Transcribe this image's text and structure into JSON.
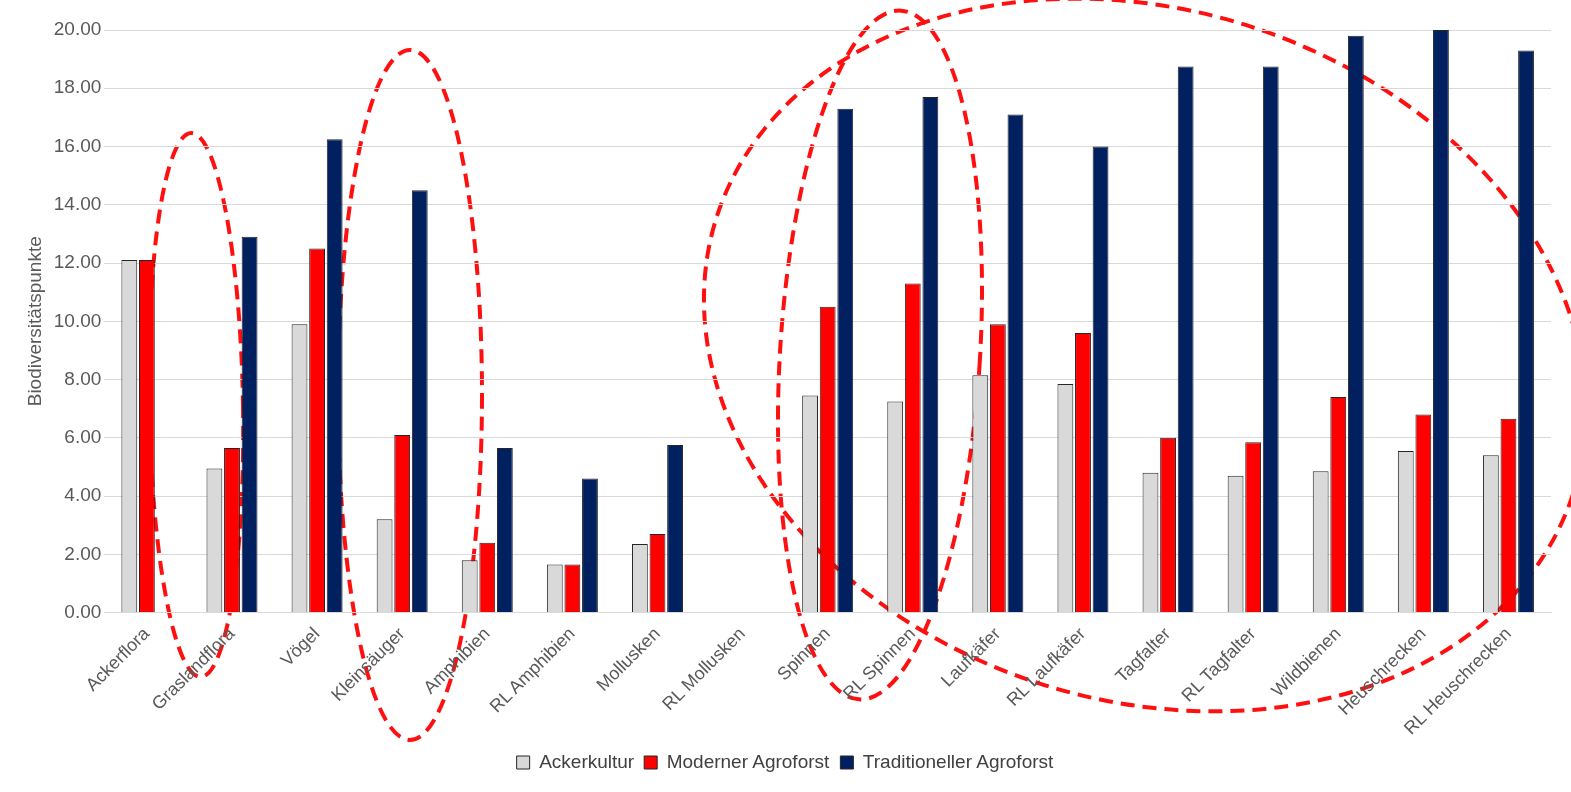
{
  "chart_data": {
    "type": "bar",
    "ylabel": "Biodiversitätspunkte",
    "categories": [
      "Ackerflora",
      "Graslandflora",
      "Vögel",
      "Kleinsäuger",
      "Amphibien",
      "RL Amphibien",
      "Mollusken",
      "RL Mollusken",
      "Spinnen",
      "RL Spinnen",
      "Laufkäfer",
      "RL Laufkäfer",
      "Tagfalter",
      "RL Tagfalter",
      "Wildbienen",
      "Heuschrecken",
      "RL Heuschrecken"
    ],
    "series": [
      {
        "name": "Ackerkultur",
        "color": "#d9d9d9",
        "values": [
          12.1,
          4.95,
          9.9,
          3.2,
          1.8,
          1.65,
          2.35,
          null,
          7.45,
          7.25,
          8.15,
          7.85,
          4.8,
          4.7,
          4.85,
          5.55,
          5.4
        ]
      },
      {
        "name": "Moderner Agroforst",
        "color": "#ff0000",
        "values": [
          12.1,
          5.65,
          12.5,
          6.1,
          2.4,
          1.65,
          2.7,
          null,
          10.5,
          11.3,
          9.9,
          9.6,
          6.0,
          5.85,
          7.4,
          6.8,
          6.65
        ]
      },
      {
        "name": "Traditioneller Agroforst",
        "color": "#002060",
        "values": [
          null,
          12.9,
          16.25,
          14.5,
          5.65,
          4.6,
          5.75,
          null,
          17.3,
          17.7,
          17.1,
          16.0,
          18.75,
          18.75,
          19.8,
          20.0,
          19.3
        ]
      }
    ],
    "ylim": [
      0,
      20
    ],
    "yticks": [
      {
        "value": 0,
        "label": "0.00"
      },
      {
        "value": 2,
        "label": "2.00"
      },
      {
        "value": 4,
        "label": "4.00"
      },
      {
        "value": 6,
        "label": "6.00"
      },
      {
        "value": 8,
        "label": "8.00"
      },
      {
        "value": 10,
        "label": "10.00"
      },
      {
        "value": 12,
        "label": "12.00"
      },
      {
        "value": 14,
        "label": "14.00"
      },
      {
        "value": 16,
        "label": "16.00"
      },
      {
        "value": 18,
        "label": "18.00"
      },
      {
        "value": 20,
        "label": "20.00"
      }
    ],
    "grid": "y",
    "legend": "bottom"
  }
}
